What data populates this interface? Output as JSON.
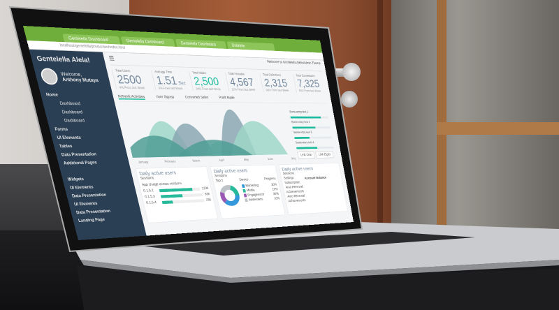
{
  "browser": {
    "tabs": [
      "Gentelella Dashboard",
      "Gentelella Dashboard",
      "Gentelella Dashboard",
      "Dribbble"
    ],
    "url": "localhost/gentelella/production/index.html"
  },
  "sidebar": {
    "brand": "Gentelella Alela!",
    "welcome": "Welcome,",
    "user": "Anthony Mutaya",
    "items": [
      {
        "label": "Home",
        "sub": false
      },
      {
        "label": "Dashboard",
        "sub": true
      },
      {
        "label": "Dashboard",
        "sub": true
      },
      {
        "label": "Dashboard",
        "sub": true
      },
      {
        "label": "Forms",
        "sub": false
      },
      {
        "label": "UI Elements",
        "sub": false
      },
      {
        "label": "Tables",
        "sub": false
      },
      {
        "label": "Data Presentation",
        "sub": false
      },
      {
        "label": "Additional Pages",
        "sub": false
      },
      {
        "label": "Widgets",
        "sub": false
      },
      {
        "label": "UI Elements",
        "sub": false
      },
      {
        "label": "Data Presentation",
        "sub": false
      },
      {
        "label": "UI Elements",
        "sub": false
      },
      {
        "label": "Data Presentation",
        "sub": false
      },
      {
        "label": "Landing Page",
        "sub": false
      }
    ]
  },
  "header": {
    "welcome": "Welcome to Gentelella Alela Admin Theme"
  },
  "kpis": [
    {
      "label": "Total Users",
      "value": "2500",
      "sub": "4% From last Week"
    },
    {
      "label": "Average Time",
      "value": "1.51",
      "unit": "Sec",
      "sub": "3% From last Week"
    },
    {
      "label": "Total Males",
      "value": "2,500",
      "sub": "34% From last Week",
      "accent": "#1abb9c"
    },
    {
      "label": "Total Females",
      "value": "4,567",
      "sub": "12% From last Week"
    },
    {
      "label": "Total Collections",
      "value": "2,315",
      "sub": "34% From last Week"
    },
    {
      "label": "Total Connections",
      "value": "7,325",
      "sub": "34% From last Week"
    }
  ],
  "chart_tabs": [
    "Network Activities",
    "User Signup",
    "Converted Sales",
    "Profit Made"
  ],
  "chart": {
    "months": [
      "January",
      "February",
      "March",
      "April",
      "May",
      "June",
      "July"
    ],
    "colors": [
      "#9fd6c8",
      "#8aa7b3",
      "#4f9e95"
    ]
  },
  "progress": [
    {
      "label": "Some entry text 1",
      "value": 0.8
    },
    {
      "label": "Some entry text 2",
      "value": 0.6
    },
    {
      "label": "Some entry text 3",
      "value": 0.4
    },
    {
      "label": "Some entry text 4",
      "value": 0.55
    }
  ],
  "buttons": [
    "Link One",
    "Link Eight"
  ],
  "cards": [
    {
      "title": "Daily active users",
      "subtitle": "Sessions",
      "heading": "App Usage across versions",
      "rows": [
        {
          "label": "0.1.5.2",
          "value": "123k",
          "fill": 0.8
        },
        {
          "label": "0.1.5.3",
          "value": "53k",
          "fill": 0.5
        },
        {
          "label": "0.1.5.4",
          "value": "23k",
          "fill": 0.25
        }
      ]
    },
    {
      "title": "Daily active users",
      "subtitle": "Sessions",
      "col1": "Top 5",
      "col2": "Device",
      "col3": "Progress",
      "legend": [
        {
          "label": "Marketing",
          "value": "30%"
        },
        {
          "label": "Media",
          "value": "10%"
        },
        {
          "label": "Engagement",
          "value": "30%"
        },
        {
          "label": "Awareness",
          "value": "10%"
        }
      ]
    },
    {
      "title": "Daily active users",
      "subtitle": "Sessions",
      "list": [
        "Settings",
        "Subscription",
        "Auto Renewal",
        "Achievements",
        "Auto Renewal",
        "Achievements"
      ],
      "balance_title": "Account Balance"
    }
  ]
}
